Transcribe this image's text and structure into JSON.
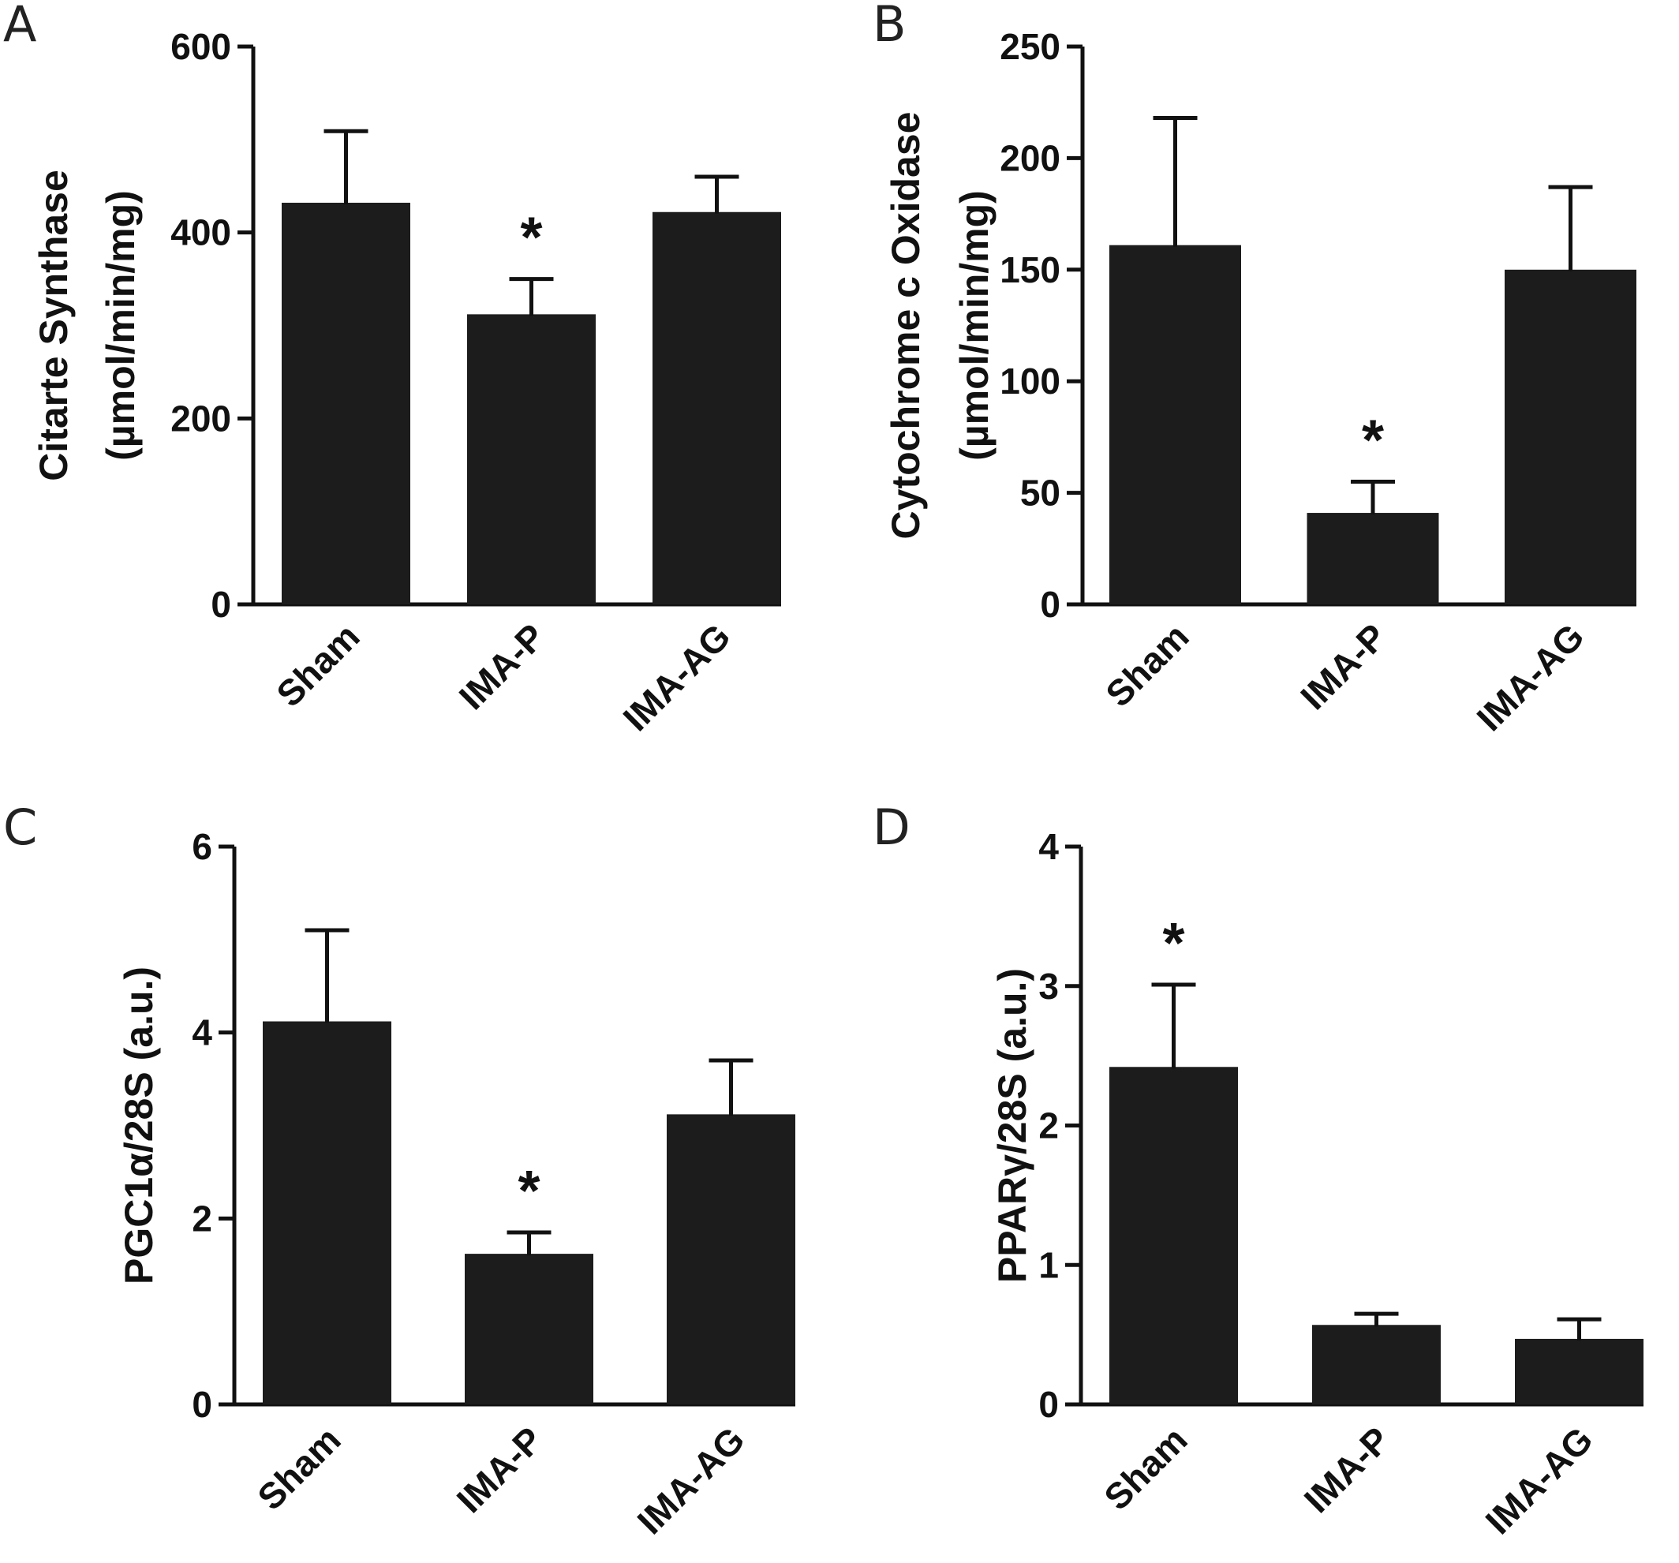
{
  "chart_data": [
    {
      "panel": "A",
      "type": "bar",
      "categories": [
        "Sham",
        "IMA-P",
        "IMA-AG"
      ],
      "values": [
        432,
        312,
        422
      ],
      "errors": [
        77,
        38,
        38
      ],
      "significance": [
        "",
        "*",
        ""
      ],
      "ylabel_lines": [
        "Citarte Synthase",
        "(µmol/min/mg)"
      ],
      "ylim": [
        0,
        600
      ],
      "yticks": [
        0,
        200,
        400,
        600
      ],
      "grid": false
    },
    {
      "panel": "B",
      "type": "bar",
      "categories": [
        "Sham",
        "IMA-P",
        "IMA-AG"
      ],
      "values": [
        161,
        41,
        150
      ],
      "errors": [
        57,
        14,
        37
      ],
      "significance": [
        "",
        "*",
        ""
      ],
      "ylabel_lines": [
        "Cytochrome c Oxidase",
        "(µmol/min/mg)"
      ],
      "ylim": [
        0,
        250
      ],
      "yticks": [
        0,
        50,
        100,
        150,
        200,
        250
      ],
      "grid": false
    },
    {
      "panel": "C",
      "type": "bar",
      "categories": [
        "Sham",
        "IMA-P",
        "IMA-AG"
      ],
      "values": [
        4.12,
        1.62,
        3.12
      ],
      "errors": [
        0.98,
        0.23,
        0.58
      ],
      "significance": [
        "",
        "*",
        ""
      ],
      "ylabel_lines": [
        "PGC1α/28S  (a.u.)"
      ],
      "ylim": [
        0,
        6
      ],
      "yticks": [
        0,
        2,
        4,
        6
      ],
      "grid": false
    },
    {
      "panel": "D",
      "type": "bar",
      "categories": [
        "Sham",
        "IMA-P",
        "IMA-AG"
      ],
      "values": [
        2.42,
        0.57,
        0.47
      ],
      "errors": [
        0.59,
        0.08,
        0.14
      ],
      "significance": [
        "*",
        "",
        ""
      ],
      "ylabel_lines": [
        "PPARγ/28S  (a.u.)"
      ],
      "ylim": [
        0,
        4
      ],
      "yticks": [
        0,
        1,
        2,
        3,
        4
      ],
      "grid": false
    }
  ]
}
